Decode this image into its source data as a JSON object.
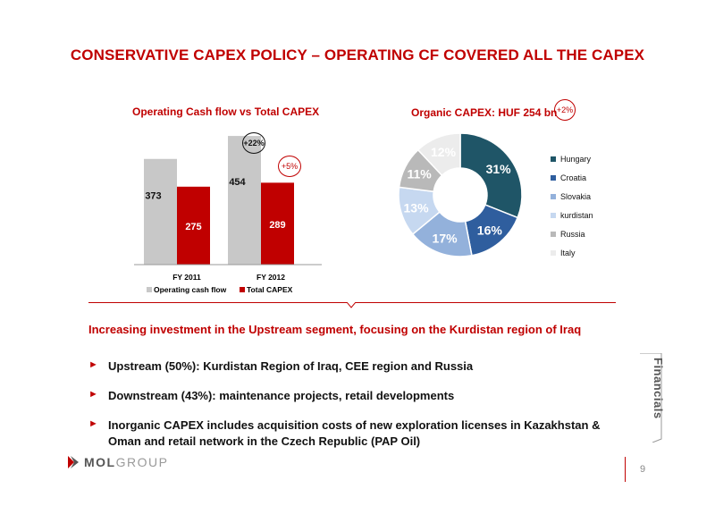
{
  "slide": {
    "title": "CONSERVATIVE CAPEX POLICY – OPERATING CF COVERED ALL THE CAPEX",
    "highlight": "Increasing investment in the Upstream segment, focusing on the Kurdistan region of Iraq",
    "bullets": [
      "Upstream (50%): Kurdistan Region of Iraq, CEE region and Russia",
      "Downstream (43%): maintenance projects, retail developments",
      "Inorganic CAPEX includes acquisition costs of new exploration licenses in Kazakhstan & Oman and retail network in the Czech Republic (PAP Oil)"
    ],
    "bullet_marker": "►",
    "side_label": "Financials",
    "page_number": "9",
    "logo": {
      "mol": "MOL",
      "group": "GROUP"
    },
    "colors": {
      "accent": "#c00000",
      "grey_bar": "#c8c8c8"
    }
  },
  "chart_data": [
    {
      "type": "bar",
      "title": "Operating Cash flow  vs Total CAPEX",
      "categories": [
        "FY 2011",
        "FY 2012"
      ],
      "series": [
        {
          "name": "Operating cash flow",
          "values": [
            373,
            454
          ],
          "color": "#c8c8c8"
        },
        {
          "name": "Total CAPEX",
          "values": [
            275,
            289
          ],
          "color": "#c00000"
        }
      ],
      "ylim": [
        0,
        470
      ],
      "legend": "bottom",
      "annotations": [
        "+22%",
        "+5%"
      ]
    },
    {
      "type": "pie",
      "title": "Organic CAPEX: HUF 254 bn",
      "badge": "+2%",
      "labels": [
        "Hungary",
        "Croatia",
        "Slovakia",
        "kurdistan",
        "Russia",
        "Italy"
      ],
      "values": [
        31,
        16,
        17,
        13,
        11,
        12
      ],
      "value_labels": [
        "31%",
        "16%",
        "17%",
        "13%",
        "11%",
        "12%"
      ],
      "colors": [
        "#1f5567",
        "#2f5e9e",
        "#93b1db",
        "#c6d8f0",
        "#b9b9b9",
        "#ececec"
      ],
      "legend": "right"
    }
  ]
}
